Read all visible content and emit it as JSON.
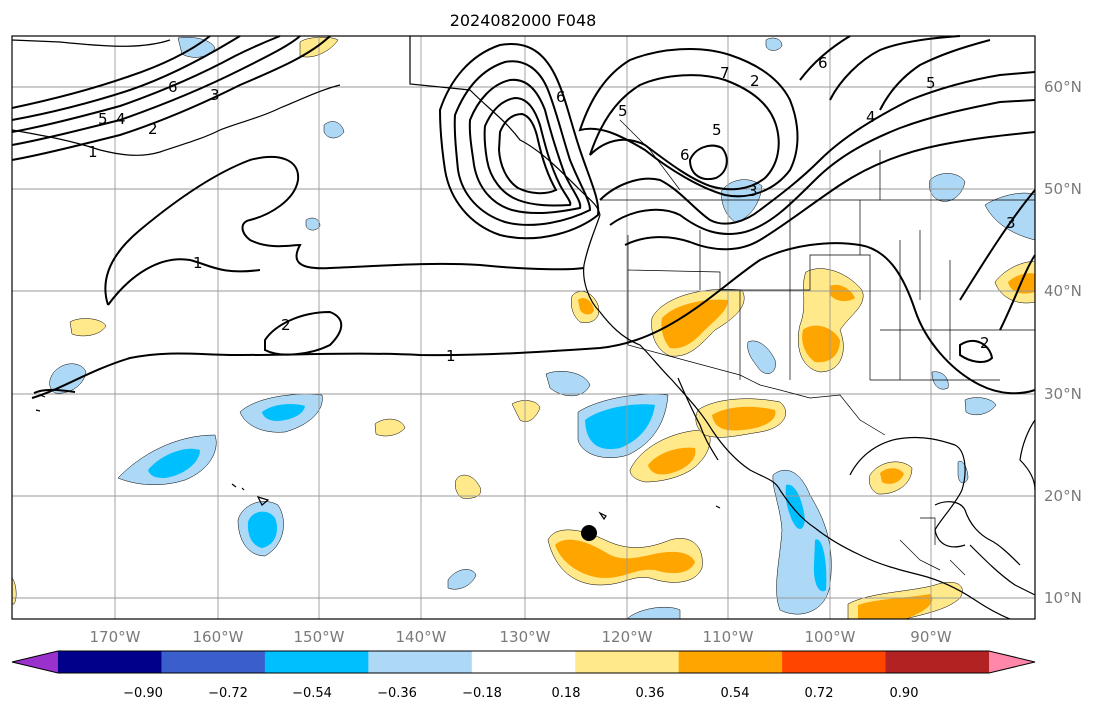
{
  "title": "2024082000 F048",
  "lat_labels": [
    "60°N",
    "50°N",
    "40°N",
    "30°N",
    "20°N",
    "10°N"
  ],
  "lon_labels": [
    "170°W",
    "160°W",
    "150°W",
    "140°W",
    "130°W",
    "120°W",
    "110°W",
    "100°W",
    "90°W"
  ],
  "colorbar": {
    "tick_labels": [
      "−0.90",
      "−0.72",
      "−0.54",
      "−0.36",
      "−0.18",
      "0.18",
      "0.36",
      "0.54",
      "0.72",
      "0.90"
    ],
    "colors": [
      "#9932cc",
      "#00008b",
      "#3a5fcd",
      "#00bfff",
      "#add8f6",
      "#ffffff",
      "#ffe98a",
      "#ffa500",
      "#ff4500",
      "#b22222",
      "#ff88aa"
    ]
  },
  "contour_labels": [
    "5",
    "4",
    "2",
    "1",
    "1",
    "2",
    "1",
    "6",
    "3",
    "6",
    "5",
    "5",
    "6",
    "3",
    "2",
    "7",
    "6",
    "5",
    "4",
    "3",
    "2"
  ],
  "colors": {
    "light_blue": "#add8f6",
    "blue": "#00bfff",
    "light_yellow": "#ffe98a",
    "orange": "#ffa500"
  }
}
